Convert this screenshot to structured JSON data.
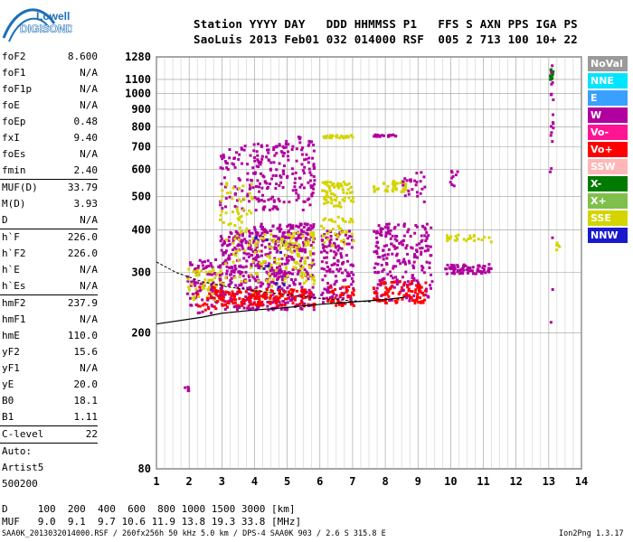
{
  "logo": {
    "line1": "Lowell",
    "line2": "DIGISONDE"
  },
  "header": {
    "labels": "Station YYYY DAY   DDD HHMMSS P1   FFS S AXN PPS IGA PS",
    "values": "SaoLuis 2013 Feb01 032 014000 RSF  005 2 713 100 10+ 22"
  },
  "params": [
    {
      "name": "foF2",
      "value": "8.600"
    },
    {
      "name": "foF1",
      "value": "N/A"
    },
    {
      "name": "foF1p",
      "value": "N/A"
    },
    {
      "name": "foE",
      "value": "N/A"
    },
    {
      "name": "foEp",
      "value": "0.48"
    },
    {
      "name": "fxI",
      "value": "9.40"
    },
    {
      "name": "foEs",
      "value": "N/A"
    },
    {
      "name": "fmin",
      "value": "2.40"
    },
    {
      "name": "MUF(D)",
      "value": "33.79"
    },
    {
      "name": "M(D)",
      "value": "3.93"
    },
    {
      "name": "D",
      "value": "N/A"
    },
    {
      "name": "h`F",
      "value": "226.0"
    },
    {
      "name": "h`F2",
      "value": "226.0"
    },
    {
      "name": "h`E",
      "value": "N/A"
    },
    {
      "name": "h`Es",
      "value": "N/A"
    },
    {
      "name": "hmF2",
      "value": "237.9"
    },
    {
      "name": "hmF1",
      "value": "N/A"
    },
    {
      "name": "hmE",
      "value": "110.0"
    },
    {
      "name": "yF2",
      "value": "15.6"
    },
    {
      "name": "yF1",
      "value": "N/A"
    },
    {
      "name": "yE",
      "value": "20.0"
    },
    {
      "name": "B0",
      "value": "18.1"
    },
    {
      "name": "B1",
      "value": "1.11"
    },
    {
      "name": "C-level",
      "value": "22"
    }
  ],
  "autoscaling": {
    "line1": "Auto:",
    "line2": "Artist5",
    "line3": "500200"
  },
  "legend": [
    {
      "label": "NoVal",
      "color": "#9a9a9a",
      "text": "#ffffff"
    },
    {
      "label": "NNE",
      "color": "#00e5ff",
      "text": "#ffffff"
    },
    {
      "label": "E",
      "color": "#3aa0ff",
      "text": "#ffffff"
    },
    {
      "label": "W",
      "color": "#b0009e",
      "text": "#ffffff"
    },
    {
      "label": "Vo-",
      "color": "#ff1493",
      "text": "#ffffff"
    },
    {
      "label": "Vo+",
      "color": "#ff0000",
      "text": "#ffffff"
    },
    {
      "label": "SSW",
      "color": "#ffb6b6",
      "text": "#ffffff"
    },
    {
      "label": "X-",
      "color": "#007a00",
      "text": "#ffffff"
    },
    {
      "label": "X+",
      "color": "#7fc04a",
      "text": "#ffffff"
    },
    {
      "label": "SSE",
      "color": "#d4d400",
      "text": "#ffffff"
    },
    {
      "label": "NNW",
      "color": "#1a1acc",
      "text": "#ffffff"
    }
  ],
  "mufTable": {
    "dLine": "D     100  200  400  600  800 1000 1500 3000 [km]",
    "mufLine": "MUF   9.0  9.1  9.7 10.6 11.9 13.8 19.3 33.8 [MHz]"
  },
  "footer": {
    "left": "SAA0K_2013032014000.RSF / 260fx256h 50 kHz 5.0 km / DPS-4 SAA0K 903 / 2.6 S 315.8 E",
    "right": "Ion2Png 1.3.17"
  },
  "chart_data": {
    "type": "scatter",
    "xlim": [
      1,
      14
    ],
    "ylim": [
      80,
      1280
    ],
    "yscale": "log",
    "xticks": [
      "1",
      "2",
      "3",
      "4",
      "5",
      "6",
      "7",
      "8",
      "9",
      "10",
      "11",
      "12",
      "13",
      "14"
    ],
    "yticks": [
      {
        "value": 80,
        "label": "80"
      },
      {
        "value": 200,
        "label": "200"
      },
      {
        "value": 300,
        "label": "300"
      },
      {
        "value": 400,
        "label": "400"
      },
      {
        "value": 500,
        "label": "500"
      },
      {
        "value": 600,
        "label": "600"
      },
      {
        "value": 700,
        "label": "700"
      },
      {
        "value": 800,
        "label": "800"
      },
      {
        "value": 900,
        "label": "900"
      },
      {
        "value": 1000,
        "label": "1000"
      },
      {
        "value": 1100,
        "label": "1100"
      },
      {
        "value": 1280,
        "label": "1280"
      }
    ],
    "grid": true,
    "legend_position": "right",
    "trace": [
      {
        "x": 1.0,
        "y": 212
      },
      {
        "x": 2.4,
        "y": 222
      },
      {
        "x": 3.0,
        "y": 228
      },
      {
        "x": 4.0,
        "y": 233
      },
      {
        "x": 5.0,
        "y": 237
      },
      {
        "x": 6.0,
        "y": 242
      },
      {
        "x": 7.0,
        "y": 246
      },
      {
        "x": 8.0,
        "y": 250
      },
      {
        "x": 8.6,
        "y": 254
      }
    ],
    "trace_x": [
      {
        "x": 1.0,
        "y": 322
      },
      {
        "x": 1.6,
        "y": 300
      },
      {
        "x": 2.4,
        "y": 282
      },
      {
        "x": 3.2,
        "y": 272
      },
      {
        "x": 5.0,
        "y": 258
      },
      {
        "x": 6.0,
        "y": 252
      },
      {
        "x": 7.0,
        "y": 248
      },
      {
        "x": 7.6,
        "y": 246
      }
    ],
    "clusters": [
      {
        "x": [
          1.8,
          2.0
        ],
        "y": [
          135,
          140
        ],
        "color": "#b0009e",
        "n": 6
      },
      {
        "x": [
          1.9,
          3.0
        ],
        "y": [
          230,
          330
        ],
        "color": "#b0009e",
        "n": 90
      },
      {
        "x": [
          1.9,
          3.0
        ],
        "y": [
          250,
          310
        ],
        "color": "#d4d400",
        "n": 50
      },
      {
        "x": [
          2.2,
          3.0
        ],
        "y": [
          235,
          275
        ],
        "color": "#ff0000",
        "n": 30
      },
      {
        "x": [
          2.9,
          3.9
        ],
        "y": [
          235,
          400
        ],
        "color": "#b0009e",
        "n": 200
      },
      {
        "x": [
          2.9,
          3.9
        ],
        "y": [
          460,
          720
        ],
        "color": "#b0009e",
        "n": 60
      },
      {
        "x": [
          2.9,
          3.9
        ],
        "y": [
          270,
          560
        ],
        "color": "#d4d400",
        "n": 70
      },
      {
        "x": [
          2.9,
          3.9
        ],
        "y": [
          240,
          270
        ],
        "color": "#ff0000",
        "n": 50
      },
      {
        "x": [
          3.9,
          4.9
        ],
        "y": [
          235,
          420
        ],
        "color": "#b0009e",
        "n": 230
      },
      {
        "x": [
          3.9,
          4.9
        ],
        "y": [
          460,
          720
        ],
        "color": "#b0009e",
        "n": 110
      },
      {
        "x": [
          3.9,
          4.9
        ],
        "y": [
          250,
          400
        ],
        "color": "#d4d400",
        "n": 60
      },
      {
        "x": [
          3.9,
          4.9
        ],
        "y": [
          240,
          270
        ],
        "color": "#ff0000",
        "n": 60
      },
      {
        "x": [
          3.9,
          4.9
        ],
        "y": [
          270,
          400
        ],
        "color": "#1a1acc",
        "n": 10
      },
      {
        "x": [
          4.9,
          5.8
        ],
        "y": [
          235,
          420
        ],
        "color": "#b0009e",
        "n": 180
      },
      {
        "x": [
          4.9,
          5.8
        ],
        "y": [
          460,
          760
        ],
        "color": "#b0009e",
        "n": 80
      },
      {
        "x": [
          4.9,
          5.8
        ],
        "y": [
          280,
          400
        ],
        "color": "#d4d400",
        "n": 80
      },
      {
        "x": [
          4.9,
          5.8
        ],
        "y": [
          240,
          270
        ],
        "color": "#ff0000",
        "n": 40
      },
      {
        "x": [
          6.0,
          7.0
        ],
        "y": [
          245,
          400
        ],
        "color": "#b0009e",
        "n": 140
      },
      {
        "x": [
          6.0,
          7.0
        ],
        "y": [
          470,
          560
        ],
        "color": "#d4d400",
        "n": 70
      },
      {
        "x": [
          6.0,
          7.0
        ],
        "y": [
          360,
          440
        ],
        "color": "#d4d400",
        "n": 40
      },
      {
        "x": [
          6.0,
          7.0
        ],
        "y": [
          748,
          762
        ],
        "color": "#d4d400",
        "n": 30
      },
      {
        "x": [
          6.2,
          7.0
        ],
        "y": [
          240,
          275
        ],
        "color": "#ff0000",
        "n": 40
      },
      {
        "x": [
          7.6,
          9.4
        ],
        "y": [
          250,
          420
        ],
        "color": "#b0009e",
        "n": 220
      },
      {
        "x": [
          7.6,
          8.6
        ],
        "y": [
          520,
          560
        ],
        "color": "#d4d400",
        "n": 40
      },
      {
        "x": [
          8.5,
          9.2
        ],
        "y": [
          480,
          600
        ],
        "color": "#b0009e",
        "n": 25
      },
      {
        "x": [
          7.6,
          8.3
        ],
        "y": [
          755,
          765
        ],
        "color": "#b0009e",
        "n": 20
      },
      {
        "x": [
          7.6,
          9.2
        ],
        "y": [
          245,
          285
        ],
        "color": "#ff0000",
        "n": 90
      },
      {
        "x": [
          9.8,
          11.2
        ],
        "y": [
          300,
          320
        ],
        "color": "#b0009e",
        "n": 70
      },
      {
        "x": [
          9.8,
          11.4
        ],
        "y": [
          370,
          390
        ],
        "color": "#d4d400",
        "n": 25
      },
      {
        "x": [
          9.9,
          10.2
        ],
        "y": [
          540,
          600
        ],
        "color": "#b0009e",
        "n": 10
      },
      {
        "x": [
          13.0,
          13.1
        ],
        "y": [
          1100,
          1200
        ],
        "color": "#007a00",
        "n": 12
      },
      {
        "x": [
          13.0,
          13.1
        ],
        "y": [
          180,
          1270
        ],
        "color": "#b0009e",
        "n": 20
      },
      {
        "x": [
          13.2,
          13.3
        ],
        "y": [
          350,
          380
        ],
        "color": "#d4d400",
        "n": 5
      }
    ]
  }
}
